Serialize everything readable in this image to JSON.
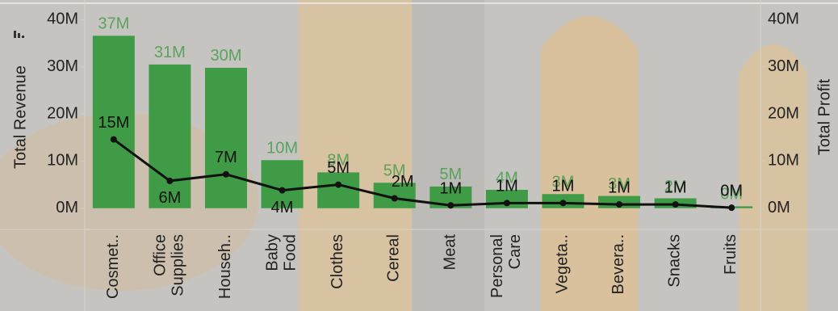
{
  "chart_data": {
    "type": "bar-line",
    "categories": [
      "Cosmet..",
      "Office Supplies",
      "Househ..",
      "Baby Food",
      "Clothes",
      "Cereal",
      "Meat",
      "Personal Care",
      "Vegeta..",
      "Bevera..",
      "Snacks",
      "Fruits"
    ],
    "ylabel": "Total Revenue",
    "y2label": "Total Profit",
    "ylim": [
      -4.5,
      43.5
    ],
    "y2lim": [
      -4.5,
      43.5
    ],
    "yticks": [
      {
        "value": 0,
        "label": "0M"
      },
      {
        "value": 10,
        "label": "10M"
      },
      {
        "value": 20,
        "label": "20M"
      },
      {
        "value": 30,
        "label": "30M"
      },
      {
        "value": 40,
        "label": "40M"
      }
    ],
    "y2ticks": [
      {
        "value": 0,
        "label": "0M"
      },
      {
        "value": 10,
        "label": "10M"
      },
      {
        "value": 20,
        "label": "20M"
      },
      {
        "value": 30,
        "label": "30M"
      },
      {
        "value": 40,
        "label": "40M"
      }
    ],
    "series": [
      {
        "name": "Total Revenue",
        "type": "bar",
        "color": "#3f9b45",
        "values": [
          36.6,
          30.5,
          29.8,
          10.2,
          7.6,
          5.4,
          4.6,
          3.9,
          3.0,
          2.6,
          2.1,
          0.4
        ],
        "value_labels": [
          "37M",
          "31M",
          "30M",
          "10M",
          "8M",
          "5M",
          "5M",
          "4M",
          "3M",
          "3M",
          "2M",
          "0M"
        ]
      },
      {
        "name": "Total Profit",
        "type": "line",
        "axis": "y2",
        "color": "#111111",
        "values": [
          14.6,
          5.8,
          7.2,
          3.8,
          5.0,
          2.1,
          0.6,
          1.1,
          1.1,
          0.8,
          0.8,
          0.1
        ],
        "value_labels": [
          "15M",
          "6M",
          "7M",
          "4M",
          "5M",
          "2M",
          "1M",
          "1M",
          "1M",
          "1M",
          "1M",
          "0M"
        ]
      }
    ]
  }
}
